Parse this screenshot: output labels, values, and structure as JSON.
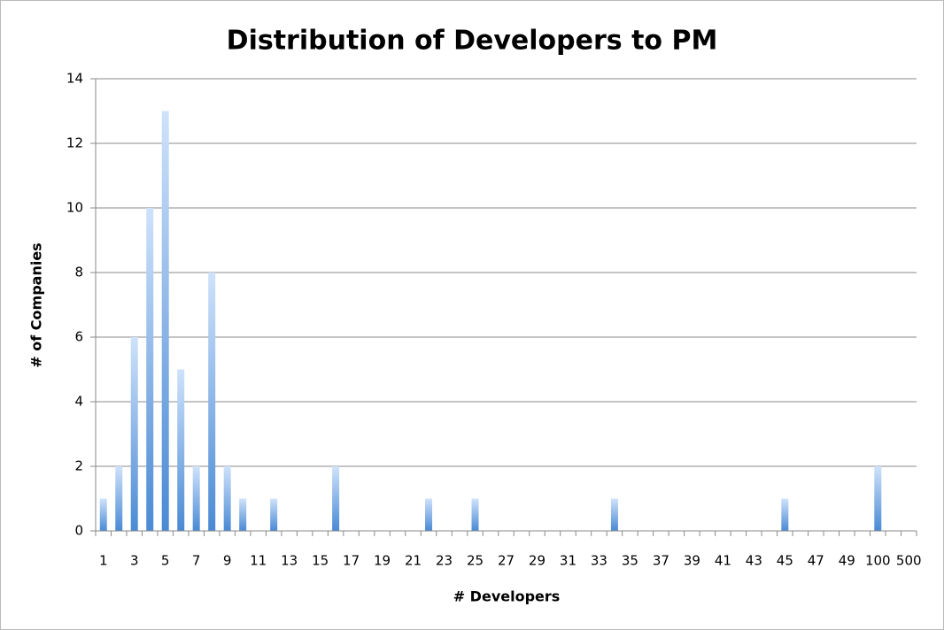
{
  "chart_data": {
    "type": "bar",
    "title": "Distribution of Developers to PM",
    "x_label": "# Developers",
    "y_label": "# of Companies",
    "categories": [
      "1",
      null,
      "3",
      null,
      "5",
      null,
      "7",
      null,
      "9",
      null,
      "11",
      null,
      "13",
      null,
      "15",
      null,
      "17",
      null,
      "19",
      null,
      "21",
      null,
      "23",
      null,
      "25",
      null,
      "27",
      null,
      "29",
      null,
      "31",
      null,
      "33",
      null,
      "35",
      null,
      "37",
      null,
      "39",
      null,
      "41",
      null,
      "43",
      null,
      "45",
      null,
      "47",
      null,
      "49",
      null,
      "100",
      null,
      "500"
    ],
    "values": [
      1,
      2,
      6,
      10,
      13,
      5,
      2,
      8,
      2,
      1,
      0,
      1,
      0,
      0,
      0,
      2,
      0,
      0,
      0,
      0,
      0,
      1,
      0,
      0,
      1,
      0,
      0,
      0,
      0,
      0,
      0,
      0,
      0,
      1,
      0,
      0,
      0,
      0,
      0,
      0,
      0,
      0,
      0,
      0,
      1,
      0,
      0,
      0,
      0,
      0,
      2,
      0,
      0
    ],
    "color": "#4a8ad4",
    "ylim": [
      0,
      14
    ],
    "yticks": [
      0,
      2,
      4,
      6,
      8,
      10,
      12,
      14
    ],
    "grid": true
  }
}
